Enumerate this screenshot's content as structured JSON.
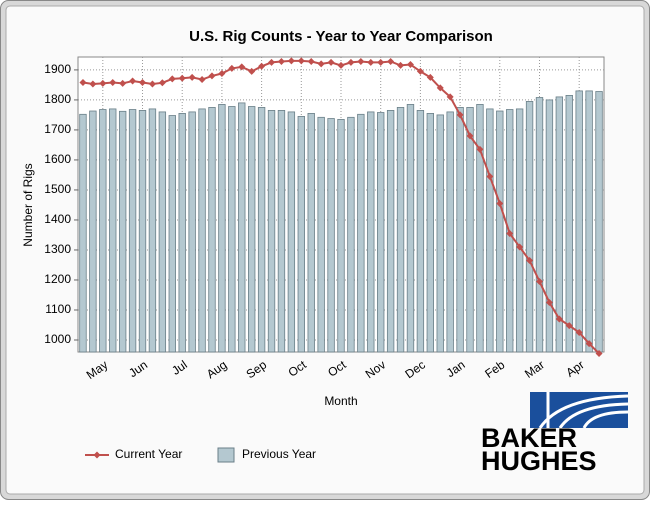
{
  "chart_data": {
    "type": "bar",
    "title": "U.S. Rig Counts - Year to Year Comparison",
    "x_label": "Month",
    "y_label": "Number of Rigs",
    "categories": [
      null,
      null,
      "May",
      null,
      null,
      null,
      "Jun",
      null,
      null,
      null,
      "Jul",
      null,
      null,
      null,
      "Aug",
      null,
      null,
      null,
      "Sep",
      null,
      null,
      null,
      "Oct",
      null,
      null,
      null,
      "Oct",
      null,
      null,
      null,
      "Nov",
      null,
      null,
      null,
      "Dec",
      null,
      null,
      null,
      "Jan",
      null,
      null,
      null,
      "Feb",
      null,
      null,
      null,
      "Mar",
      null,
      null,
      null,
      "Apr",
      null,
      null
    ],
    "series": [
      {
        "name": "Current Year",
        "type": "line",
        "color": "#c0504d",
        "values": [
          1858,
          1853,
          1855,
          1858,
          1855,
          1863,
          1858,
          1853,
          1857,
          1870,
          1872,
          1875,
          1868,
          1880,
          1888,
          1905,
          1910,
          1895,
          1912,
          1925,
          1928,
          1930,
          1930,
          1928,
          1920,
          1925,
          1915,
          1925,
          1928,
          1925,
          1925,
          1928,
          1915,
          1918,
          1895,
          1875,
          1840,
          1810,
          1750,
          1680,
          1635,
          1545,
          1455,
          1355,
          1310,
          1265,
          1195,
          1125,
          1070,
          1048,
          1025,
          988,
          955
        ]
      },
      {
        "name": "Previous Year",
        "type": "bar",
        "color": "#b4c8d0",
        "values": [
          1752,
          1763,
          1768,
          1770,
          1762,
          1768,
          1765,
          1770,
          1760,
          1748,
          1755,
          1760,
          1770,
          1775,
          1785,
          1778,
          1790,
          1778,
          1775,
          1765,
          1765,
          1760,
          1745,
          1755,
          1742,
          1738,
          1735,
          1742,
          1752,
          1760,
          1758,
          1765,
          1775,
          1785,
          1765,
          1755,
          1750,
          1760,
          1775,
          1775,
          1785,
          1770,
          1763,
          1768,
          1770,
          1795,
          1808,
          1800,
          1810,
          1815,
          1830,
          1830,
          1828
        ]
      }
    ],
    "ylim": [
      960,
      1943
    ],
    "yticks": [
      1000,
      1100,
      1200,
      1300,
      1400,
      1500,
      1600,
      1700,
      1800,
      1900
    ],
    "grid": true
  },
  "logo": [
    "BAKER",
    "HUGHES"
  ]
}
